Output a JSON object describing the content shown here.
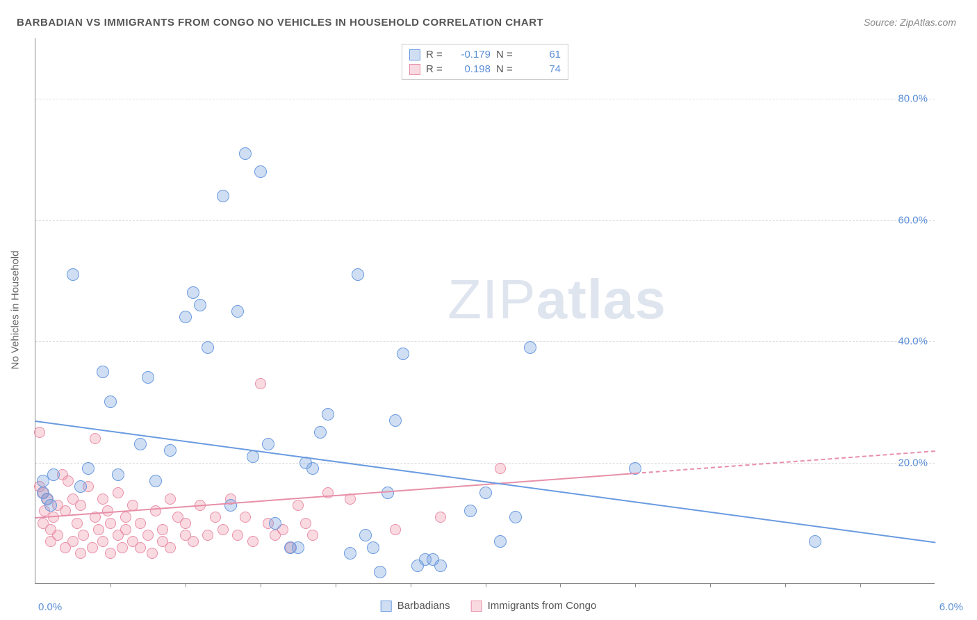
{
  "title": "BARBADIAN VS IMMIGRANTS FROM CONGO NO VEHICLES IN HOUSEHOLD CORRELATION CHART",
  "source_label": "Source: ZipAtlas.com",
  "ylabel": "No Vehicles in Household",
  "watermark_thin": "ZIP",
  "watermark_bold": "atlas",
  "axes": {
    "xlim": [
      0,
      6.0
    ],
    "ylim": [
      0,
      90
    ],
    "yticks": [
      {
        "v": 20,
        "label": "20.0%"
      },
      {
        "v": 40,
        "label": "40.0%"
      },
      {
        "v": 60,
        "label": "60.0%"
      },
      {
        "v": 80,
        "label": "80.0%"
      }
    ],
    "xtick_positions": [
      0.5,
      1.0,
      1.5,
      2.0,
      2.5,
      3.0,
      3.5,
      4.0,
      4.5,
      5.0,
      5.5
    ],
    "x_left_label": "0.0%",
    "x_right_label": "6.0%"
  },
  "series": {
    "blue": {
      "name": "Barbadians",
      "fill": "rgba(120,160,220,0.35)",
      "stroke": "#6a9be0",
      "R": "-0.179",
      "N": "61",
      "trend": {
        "x1": 0.0,
        "y1": 27.0,
        "x2": 6.0,
        "y2": 7.0,
        "solid_until_x": 6.0
      },
      "points": [
        [
          0.05,
          15
        ],
        [
          0.05,
          17
        ],
        [
          0.08,
          14
        ],
        [
          0.1,
          13
        ],
        [
          0.12,
          18
        ],
        [
          0.25,
          51
        ],
        [
          0.3,
          16
        ],
        [
          0.35,
          19
        ],
        [
          0.45,
          35
        ],
        [
          0.5,
          30
        ],
        [
          0.55,
          18
        ],
        [
          0.7,
          23
        ],
        [
          0.75,
          34
        ],
        [
          0.8,
          17
        ],
        [
          0.9,
          22
        ],
        [
          1.0,
          44
        ],
        [
          1.05,
          48
        ],
        [
          1.1,
          46
        ],
        [
          1.15,
          39
        ],
        [
          1.25,
          64
        ],
        [
          1.3,
          13
        ],
        [
          1.35,
          45
        ],
        [
          1.4,
          71
        ],
        [
          1.45,
          21
        ],
        [
          1.5,
          68
        ],
        [
          1.55,
          23
        ],
        [
          1.6,
          10
        ],
        [
          1.7,
          6
        ],
        [
          1.75,
          6
        ],
        [
          1.8,
          20
        ],
        [
          1.85,
          19
        ],
        [
          1.9,
          25
        ],
        [
          1.95,
          28
        ],
        [
          2.1,
          5
        ],
        [
          2.15,
          51
        ],
        [
          2.2,
          8
        ],
        [
          2.25,
          6
        ],
        [
          2.3,
          2
        ],
        [
          2.35,
          15
        ],
        [
          2.4,
          27
        ],
        [
          2.45,
          38
        ],
        [
          2.55,
          3
        ],
        [
          2.6,
          4
        ],
        [
          2.65,
          4
        ],
        [
          2.7,
          3
        ],
        [
          2.9,
          12
        ],
        [
          3.0,
          15
        ],
        [
          3.1,
          7
        ],
        [
          3.2,
          11
        ],
        [
          3.3,
          39
        ],
        [
          4.0,
          19
        ],
        [
          5.2,
          7
        ]
      ],
      "radius": 9
    },
    "pink": {
      "name": "Immigrants from Congo",
      "fill": "rgba(240,150,170,0.35)",
      "stroke": "#e78fa8",
      "R": "0.198",
      "N": "74",
      "trend": {
        "x1": 0.0,
        "y1": 11.0,
        "x2": 6.0,
        "y2": 22.0,
        "solid_until_x": 4.0
      },
      "points": [
        [
          0.03,
          25
        ],
        [
          0.03,
          16
        ],
        [
          0.05,
          10
        ],
        [
          0.05,
          15
        ],
        [
          0.06,
          12
        ],
        [
          0.08,
          14
        ],
        [
          0.1,
          9
        ],
        [
          0.1,
          7
        ],
        [
          0.12,
          11
        ],
        [
          0.15,
          8
        ],
        [
          0.15,
          13
        ],
        [
          0.18,
          18
        ],
        [
          0.2,
          6
        ],
        [
          0.2,
          12
        ],
        [
          0.22,
          17
        ],
        [
          0.25,
          7
        ],
        [
          0.25,
          14
        ],
        [
          0.28,
          10
        ],
        [
          0.3,
          5
        ],
        [
          0.3,
          13
        ],
        [
          0.32,
          8
        ],
        [
          0.35,
          16
        ],
        [
          0.38,
          6
        ],
        [
          0.4,
          11
        ],
        [
          0.4,
          24
        ],
        [
          0.42,
          9
        ],
        [
          0.45,
          7
        ],
        [
          0.45,
          14
        ],
        [
          0.48,
          12
        ],
        [
          0.5,
          5
        ],
        [
          0.5,
          10
        ],
        [
          0.55,
          8
        ],
        [
          0.55,
          15
        ],
        [
          0.58,
          6
        ],
        [
          0.6,
          11
        ],
        [
          0.6,
          9
        ],
        [
          0.65,
          13
        ],
        [
          0.65,
          7
        ],
        [
          0.7,
          10
        ],
        [
          0.7,
          6
        ],
        [
          0.75,
          8
        ],
        [
          0.78,
          5
        ],
        [
          0.8,
          12
        ],
        [
          0.85,
          9
        ],
        [
          0.85,
          7
        ],
        [
          0.9,
          14
        ],
        [
          0.9,
          6
        ],
        [
          0.95,
          11
        ],
        [
          1.0,
          8
        ],
        [
          1.0,
          10
        ],
        [
          1.05,
          7
        ],
        [
          1.1,
          13
        ],
        [
          1.15,
          8
        ],
        [
          1.2,
          11
        ],
        [
          1.25,
          9
        ],
        [
          1.3,
          14
        ],
        [
          1.35,
          8
        ],
        [
          1.4,
          11
        ],
        [
          1.45,
          7
        ],
        [
          1.5,
          33
        ],
        [
          1.55,
          10
        ],
        [
          1.6,
          8
        ],
        [
          1.65,
          9
        ],
        [
          1.7,
          6
        ],
        [
          1.75,
          13
        ],
        [
          1.8,
          10
        ],
        [
          1.85,
          8
        ],
        [
          1.95,
          15
        ],
        [
          2.1,
          14
        ],
        [
          2.4,
          9
        ],
        [
          2.7,
          11
        ],
        [
          3.1,
          19
        ]
      ],
      "radius": 8
    }
  }
}
